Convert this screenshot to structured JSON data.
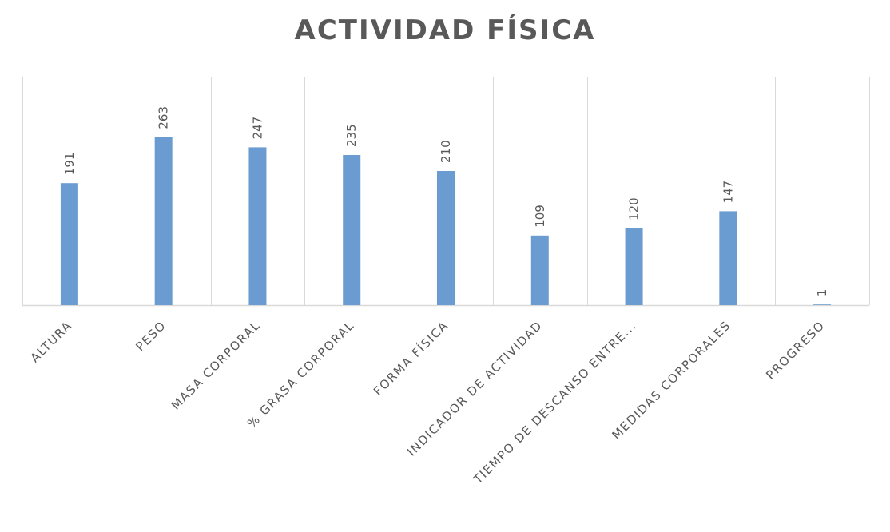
{
  "chart_data": {
    "type": "bar",
    "title": "ACTIVIDAD FÍSICA",
    "categories": [
      "ALTURA",
      "PESO",
      "MASA CORPORAL",
      "% GRASA CORPORAL",
      "FORMA FÍSICA",
      "INDICADOR DE ACTIVIDAD",
      "TIEMPO DE DESCANSO ENTRE...",
      "MEDIDAS CORPORALES",
      "PROGRESO"
    ],
    "values": [
      191,
      263,
      247,
      235,
      210,
      109,
      120,
      147,
      1
    ],
    "ylim": [
      0,
      300
    ],
    "grid": "vertical separators between categories",
    "legend": "none",
    "bar_color": "#6a9bd1",
    "text_color": "#595959"
  }
}
